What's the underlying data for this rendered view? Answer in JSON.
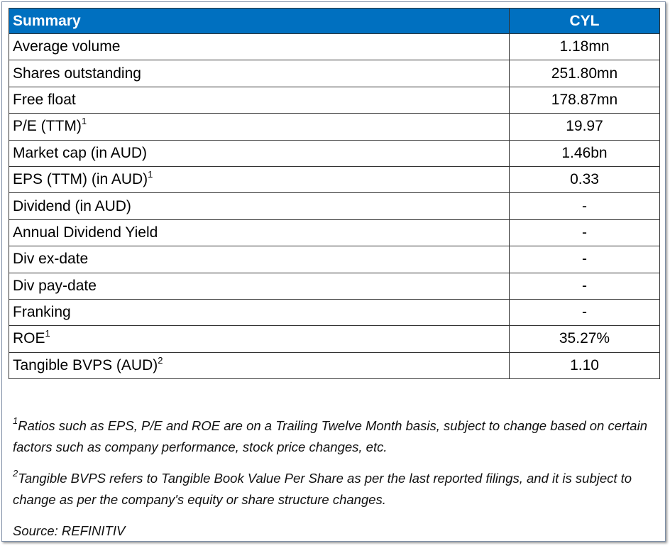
{
  "table": {
    "header": [
      "Summary",
      "CYL"
    ],
    "rows": [
      {
        "label": "Average volume",
        "value": "1.18mn"
      },
      {
        "label": "Shares outstanding",
        "value": "251.80mn"
      },
      {
        "label": "Free float",
        "value": "178.87mn"
      },
      {
        "label": "P/E (TTM)",
        "note": "1",
        "value": "19.97"
      },
      {
        "label": "Market cap (in AUD)",
        "value": "1.46bn"
      },
      {
        "label": "EPS (TTM) (in AUD)",
        "note": "1",
        "value": "0.33"
      },
      {
        "label": "Dividend (in AUD)",
        "value": "-"
      },
      {
        "label": "Annual Dividend Yield",
        "value": "-"
      },
      {
        "label": "Div ex-date",
        "value": "-"
      },
      {
        "label": "Div pay-date",
        "value": "-"
      },
      {
        "label": "Franking",
        "value": "-"
      },
      {
        "label": "ROE",
        "note": "1",
        "value": "35.27%"
      },
      {
        "label": "Tangible BVPS (AUD)",
        "note": "2",
        "value": "1.10"
      }
    ]
  },
  "footnotes": [
    {
      "marker": "1",
      "text": "Ratios such as EPS, P/E and ROE are on a Trailing Twelve Month basis, subject to change based on certain factors such as company performance, stock price changes, etc."
    },
    {
      "marker": "2",
      "text": "Tangible BVPS refers to Tangible Book Value Per Share as per the last reported filings, and it is subject to change as per the company's equity or share structure changes."
    }
  ],
  "source": "Source: REFINITIV"
}
